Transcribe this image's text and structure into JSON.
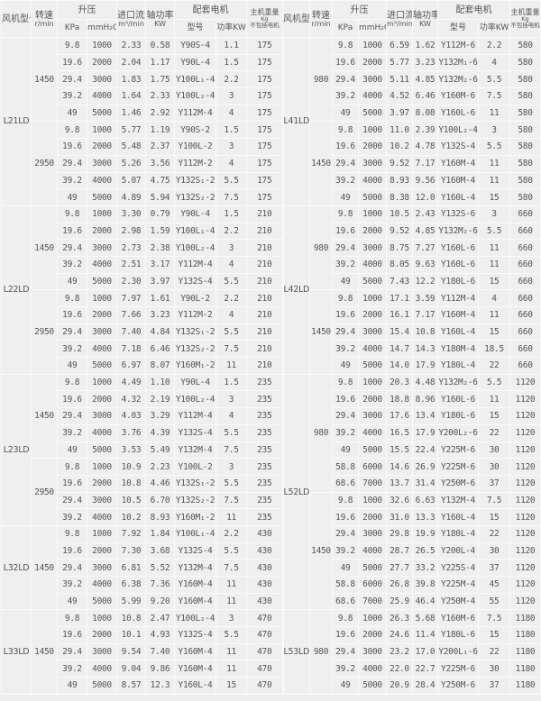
{
  "header": {
    "model": "风机型号",
    "speed": "转速",
    "speed_unit": "r/min",
    "pressure": "升压",
    "kpa": "KPa",
    "mmh2o": "mmH₂O",
    "flow": "进口流量",
    "flow_unit": "m³/min",
    "shaft_power": "轴功率",
    "shaft_power_unit": "KW",
    "motor": "配套电机",
    "motor_type": "型号",
    "motor_power": "功率KW",
    "weight": "主机重量",
    "weight_unit": "Kg",
    "weight_note": "不包括电机"
  },
  "left": [
    {
      "model": "L21LD",
      "speeds": [
        {
          "rpm": "1450",
          "rows": [
            [
              "9.8",
              "1000",
              "2.33",
              "0.58",
              "Y90S-4",
              "1.1",
              "175"
            ],
            [
              "19.6",
              "2000",
              "2.04",
              "1.17",
              "Y90L-4",
              "1.5",
              "175"
            ],
            [
              "29.4",
              "3000",
              "1.83",
              "1.75",
              "Y100L₁-4",
              "2.2",
              "175"
            ],
            [
              "39.2",
              "4000",
              "1.64",
              "2.33",
              "Y100L₂-4",
              "3",
              "175"
            ],
            [
              "49",
              "5000",
              "1.46",
              "2.92",
              "Y112M-4",
              "4",
              "175"
            ]
          ]
        },
        {
          "rpm": "2950",
          "rows": [
            [
              "9.8",
              "1000",
              "5.77",
              "1.19",
              "Y90S-2",
              "1.5",
              "175"
            ],
            [
              "19.6",
              "2000",
              "5.48",
              "2.37",
              "Y100L-2",
              "3",
              "175"
            ],
            [
              "29.4",
              "3000",
              "5.26",
              "3.56",
              "Y112M-2",
              "4",
              "175"
            ],
            [
              "39.2",
              "4000",
              "5.07",
              "4.75",
              "Y132S₁-2",
              "5.5",
              "175"
            ],
            [
              "49",
              "5000",
              "4.89",
              "5.94",
              "Y132S₂-2",
              "7.5",
              "175"
            ]
          ]
        }
      ]
    },
    {
      "model": "L22LD",
      "speeds": [
        {
          "rpm": "1450",
          "rows": [
            [
              "9.8",
              "1000",
              "3.30",
              "0.79",
              "Y90L-4",
              "1.5",
              "210"
            ],
            [
              "19.6",
              "2000",
              "2.98",
              "1.59",
              "Y100L₁-4",
              "2.2",
              "210"
            ],
            [
              "29.4",
              "3000",
              "2.73",
              "2.38",
              "Y100L₂-4",
              "3",
              "210"
            ],
            [
              "39.2",
              "4000",
              "2.51",
              "3.17",
              "Y112M-4",
              "4",
              "210"
            ],
            [
              "49",
              "5000",
              "2.30",
              "3.97",
              "Y132S-4",
              "5.5",
              "210"
            ]
          ]
        },
        {
          "rpm": "2950",
          "rows": [
            [
              "9.8",
              "1000",
              "7.97",
              "1.61",
              "Y90L-2",
              "2.2",
              "210"
            ],
            [
              "19.6",
              "2000",
              "7.66",
              "3.23",
              "Y112M-2",
              "4",
              "210"
            ],
            [
              "29.4",
              "3000",
              "7.40",
              "4.84",
              "Y132S₁-2",
              "5.5",
              "210"
            ],
            [
              "39.2",
              "4000",
              "7.18",
              "6.46",
              "Y132S₂-2",
              "7.5",
              "210"
            ],
            [
              "49",
              "5000",
              "6.97",
              "8.07",
              "Y160M₁-2",
              "11",
              "210"
            ]
          ]
        }
      ]
    },
    {
      "model": "L23LD",
      "speeds": [
        {
          "rpm": "1450",
          "rows": [
            [
              "9.8",
              "1000",
              "4.49",
              "1.10",
              "Y90L-4",
              "1.5",
              "235"
            ],
            [
              "19.6",
              "2000",
              "4.32",
              "2.19",
              "Y100L₂-4",
              "3",
              "235"
            ],
            [
              "29.4",
              "3000",
              "4.03",
              "3.29",
              "Y112M-4",
              "4",
              "235"
            ],
            [
              "39.2",
              "4000",
              "3.76",
              "4.39",
              "Y132S-4",
              "5.5",
              "235"
            ],
            [
              "49",
              "5000",
              "3.53",
              "5.49",
              "Y132M-4",
              "7.5",
              "235"
            ]
          ]
        },
        {
          "rpm": "2950",
          "rows": [
            [
              "9.8",
              "1000",
              "10.9",
              "2.23",
              "Y100L-2",
              "3",
              "235"
            ],
            [
              "19.6",
              "2000",
              "10.8",
              "4.46",
              "Y132S₁-2",
              "5.5",
              "235"
            ],
            [
              "29.4",
              "3000",
              "10.5",
              "6.70",
              "Y132S₂-2",
              "7.5",
              "235"
            ],
            [
              "39.2",
              "4000",
              "10.2",
              "8.93",
              "Y160M₁-2",
              "11",
              "235"
            ]
          ]
        }
      ]
    },
    {
      "model": "L32LD",
      "speeds": [
        {
          "rpm": "1450",
          "rows": [
            [
              "9.8",
              "1000",
              "7.92",
              "1.84",
              "Y100L₁-4",
              "2.2",
              "430"
            ],
            [
              "19.6",
              "2000",
              "7.30",
              "3.68",
              "Y132S-4",
              "5.5",
              "430"
            ],
            [
              "29.4",
              "3000",
              "6.81",
              "5.52",
              "Y132M-4",
              "7.5",
              "430"
            ],
            [
              "39.2",
              "4000",
              "6.38",
              "7.36",
              "Y160M-4",
              "11",
              "430"
            ],
            [
              "49",
              "5000",
              "5.99",
              "9.20",
              "Y160M-4",
              "11",
              "430"
            ]
          ]
        }
      ]
    },
    {
      "model": "L33LD",
      "speeds": [
        {
          "rpm": "1450",
          "rows": [
            [
              "9.8",
              "1000",
              "10.8",
              "2.47",
              "Y100L₂-4",
              "3",
              "470"
            ],
            [
              "19.6",
              "2000",
              "10.1",
              "4.93",
              "Y132S-4",
              "5.5",
              "470"
            ],
            [
              "29.4",
              "3000",
              "9.54",
              "7.40",
              "Y160M-4",
              "11",
              "470"
            ],
            [
              "39.2",
              "4000",
              "9.04",
              "9.86",
              "Y160M-4",
              "11",
              "470"
            ],
            [
              "49",
              "5000",
              "8.57",
              "12.3",
              "Y160L-4",
              "15",
              "470"
            ]
          ]
        }
      ]
    }
  ],
  "right": [
    {
      "model": "L41LD",
      "speeds": [
        {
          "rpm": "980",
          "rows": [
            [
              "9.8",
              "1000",
              "6.59",
              "1.62",
              "Y112M-6",
              "2.2",
              "580"
            ],
            [
              "19.6",
              "2000",
              "5.77",
              "3.23",
              "Y132M₁-6",
              "4",
              "580"
            ],
            [
              "29.4",
              "3000",
              "5.11",
              "4.85",
              "Y132M₂-6",
              "5.5",
              "580"
            ],
            [
              "39.2",
              "4000",
              "4.52",
              "6.46",
              "Y160M-6",
              "7.5",
              "580"
            ],
            [
              "49",
              "5000",
              "3.97",
              "8.08",
              "Y160L-6",
              "11",
              "580"
            ]
          ]
        },
        {
          "rpm": "1450",
          "rows": [
            [
              "9.8",
              "1000",
              "11.0",
              "2.39",
              "Y100L₂-4",
              "3",
              "580"
            ],
            [
              "19.6",
              "2000",
              "10.2",
              "4.78",
              "Y132S-4",
              "5.5",
              "580"
            ],
            [
              "29.4",
              "3000",
              "9.52",
              "7.17",
              "Y160M-4",
              "11",
              "580"
            ],
            [
              "39.2",
              "4000",
              "8.93",
              "9.56",
              "Y160M-4",
              "11",
              "580"
            ],
            [
              "49",
              "5000",
              "8.38",
              "12.0",
              "Y160L-4",
              "15",
              "580"
            ]
          ]
        }
      ]
    },
    {
      "model": "L42LD",
      "speeds": [
        {
          "rpm": "980",
          "rows": [
            [
              "9.8",
              "1000",
              "10.5",
              "2.43",
              "Y132S-6",
              "3",
              "660"
            ],
            [
              "19.6",
              "2000",
              "9.52",
              "4.85",
              "Y132M₂-6",
              "5.5",
              "660"
            ],
            [
              "29.4",
              "3000",
              "8.75",
              "7.27",
              "Y160L-6",
              "11",
              "660"
            ],
            [
              "39.2",
              "4000",
              "8.05",
              "9.63",
              "Y160L-6",
              "11",
              "660"
            ],
            [
              "49",
              "5000",
              "7.43",
              "12.2",
              "Y180L-6",
              "15",
              "660"
            ]
          ]
        },
        {
          "rpm": "1450",
          "rows": [
            [
              "9.8",
              "1000",
              "17.1",
              "3.59",
              "Y112M-4",
              "4",
              "660"
            ],
            [
              "19.6",
              "2000",
              "16.1",
              "7.17",
              "Y160M-4",
              "11",
              "660"
            ],
            [
              "29.4",
              "3000",
              "15.4",
              "10.8",
              "Y160L-4",
              "15",
              "660"
            ],
            [
              "39.2",
              "4000",
              "14.7",
              "14.3",
              "Y180M-4",
              "18.5",
              "660"
            ],
            [
              "49",
              "5000",
              "14.0",
              "17.9",
              "Y180L-4",
              "22",
              "660"
            ]
          ]
        }
      ]
    },
    {
      "model": "L52LD",
      "speeds": [
        {
          "rpm": "980",
          "rows": [
            [
              "9.8",
              "1000",
              "20.3",
              "4.48",
              "Y132M₂-6",
              "5.5",
              "1120"
            ],
            [
              "19.6",
              "2000",
              "18.8",
              "8.96",
              "Y160L-6",
              "11",
              "1120"
            ],
            [
              "29.4",
              "3000",
              "17.6",
              "13.4",
              "Y180L-6",
              "15",
              "1120"
            ],
            [
              "39.2",
              "4000",
              "16.5",
              "17.9",
              "Y200L₂-6",
              "22",
              "1120"
            ],
            [
              "49",
              "5000",
              "15.5",
              "22.4",
              "Y225M-6",
              "30",
              "1120"
            ],
            [
              "58.8",
              "6000",
              "14.6",
              "26.9",
              "Y225M-6",
              "30",
              "1120"
            ],
            [
              "68.6",
              "7000",
              "13.7",
              "31.4",
              "Y250M-6",
              "37",
              "1120"
            ]
          ]
        },
        {
          "rpm": "1450",
          "rows": [
            [
              "9.8",
              "1000",
              "32.6",
              "6.63",
              "Y132M-4",
              "7.5",
              "1120"
            ],
            [
              "19.6",
              "2000",
              "31.0",
              "13.3",
              "Y160L-4",
              "15",
              "1120"
            ],
            [
              "29.4",
              "3000",
              "29.8",
              "19.9",
              "Y180L-4",
              "22",
              "1120"
            ],
            [
              "39.2",
              "4000",
              "28.7",
              "26.5",
              "Y200L-4",
              "30",
              "1120"
            ],
            [
              "49",
              "5000",
              "27.7",
              "33.2",
              "Y225S-4",
              "37",
              "1120"
            ],
            [
              "58.8",
              "6000",
              "26.8",
              "39.8",
              "Y225M-4",
              "45",
              "1120"
            ],
            [
              "68.6",
              "7000",
              "25.9",
              "46.4",
              "Y250M-4",
              "55",
              "1120"
            ]
          ]
        }
      ]
    },
    {
      "model": "L53LD",
      "speeds": [
        {
          "rpm": "980",
          "rows": [
            [
              "9.8",
              "1000",
              "26.3",
              "5.68",
              "Y160M-6",
              "7.5",
              "1180"
            ],
            [
              "19.6",
              "2000",
              "24.6",
              "11.4",
              "Y180L-6",
              "15",
              "1180"
            ],
            [
              "29.4",
              "3000",
              "23.2",
              "17.0",
              "Y200L₁-6",
              "22",
              "1180"
            ],
            [
              "39.2",
              "4000",
              "22.0",
              "22.7",
              "Y225M-6",
              "30",
              "1180"
            ],
            [
              "49",
              "5000",
              "20.9",
              "28.4",
              "Y250M-6",
              "37",
              "1180"
            ]
          ]
        }
      ]
    }
  ]
}
